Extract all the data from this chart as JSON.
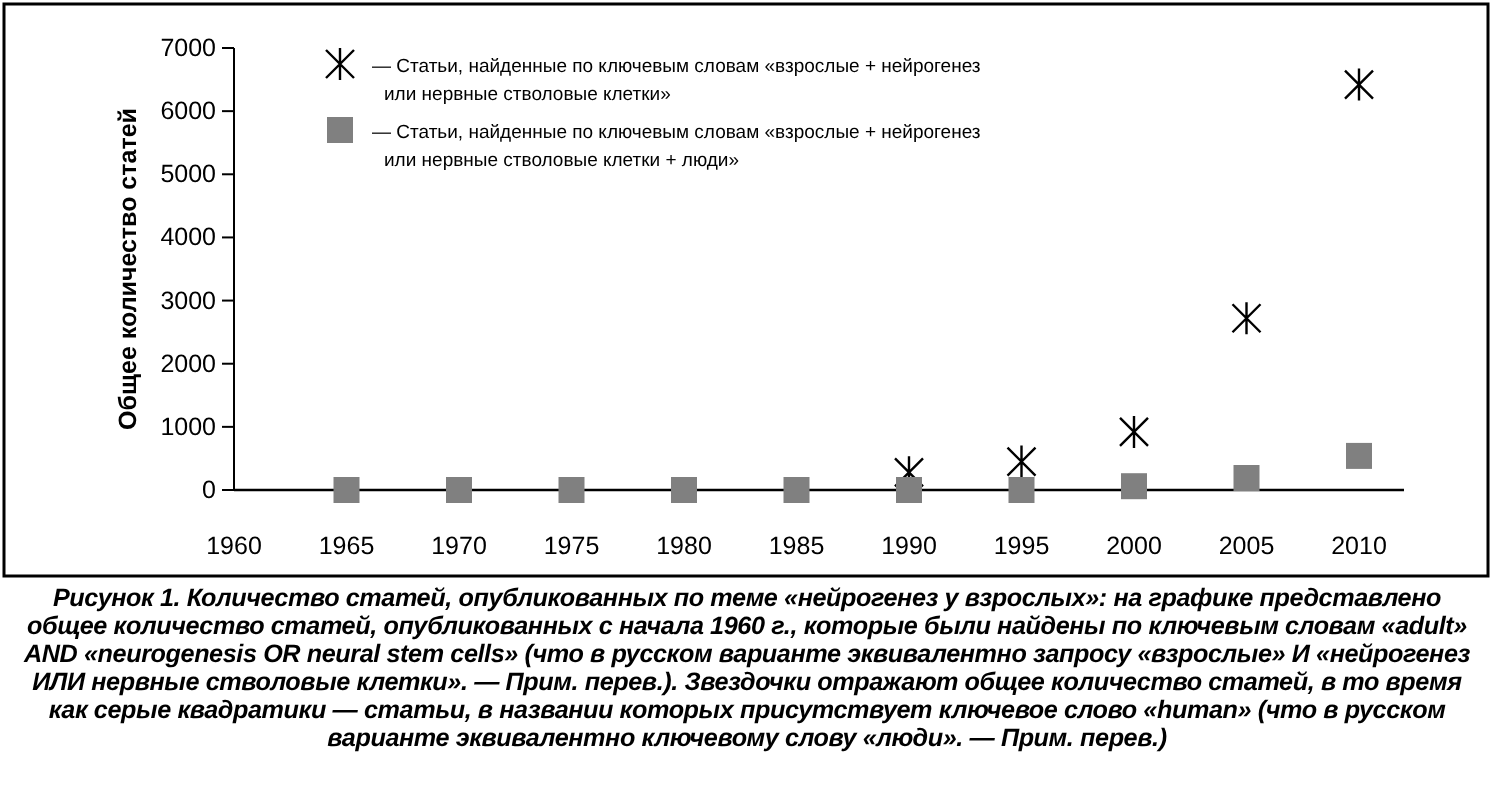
{
  "chart_data": {
    "type": "scatter",
    "ylabel": "Общее количество статей",
    "x": [
      1965,
      1970,
      1975,
      1980,
      1985,
      1990,
      1995,
      2000,
      2005,
      2010
    ],
    "series": [
      {
        "name": "— Статьи, найденные по ключевым словам «взрослые + нейрогенез или нервные стволовые клетки»",
        "color": "#000000",
        "marker": "cross",
        "values": [
          null,
          null,
          null,
          null,
          null,
          280,
          450,
          920,
          2720,
          6420
        ]
      },
      {
        "name": "— Статьи, найденные по ключевым словам «взрослые + нейрогенез или нервные стволовые клетки + люди»",
        "color": "#808080",
        "marker": "square",
        "values": [
          0,
          0,
          0,
          0,
          0,
          0,
          0,
          60,
          190,
          540
        ]
      }
    ],
    "xlim": [
      1960,
      2012
    ],
    "xticks": [
      1960,
      1965,
      1970,
      1975,
      1980,
      1985,
      1990,
      1995,
      2000,
      2005,
      2010
    ],
    "ylim": [
      0,
      7000
    ],
    "yticks": [
      0,
      1000,
      2000,
      3000,
      4000,
      5000,
      6000,
      7000
    ],
    "grid": false,
    "legend": "top left",
    "annotations": [
      "Рисунок 1. Количество статей, опубликованных по теме «нейрогенез у взрослых»: на графике представлено общее количество статей, опубликованных с начала 1960 г., которые были найдены по ключевым словам «adult» AND «neurogenesis OR neural stem cells» (что в русском варианте эквивалентно запросу «взрослые» И «нейрогенез ИЛИ нервные стволовые клетки». — Прим. перев.). Звездочки отражают общее количество статей, в то время как серые квадратики — статьи, в названии которых присутствует ключевое слово «human» (что в русском варианте эквивалентно ключевому слову «люди». — Прим. перев.)"
    ]
  }
}
